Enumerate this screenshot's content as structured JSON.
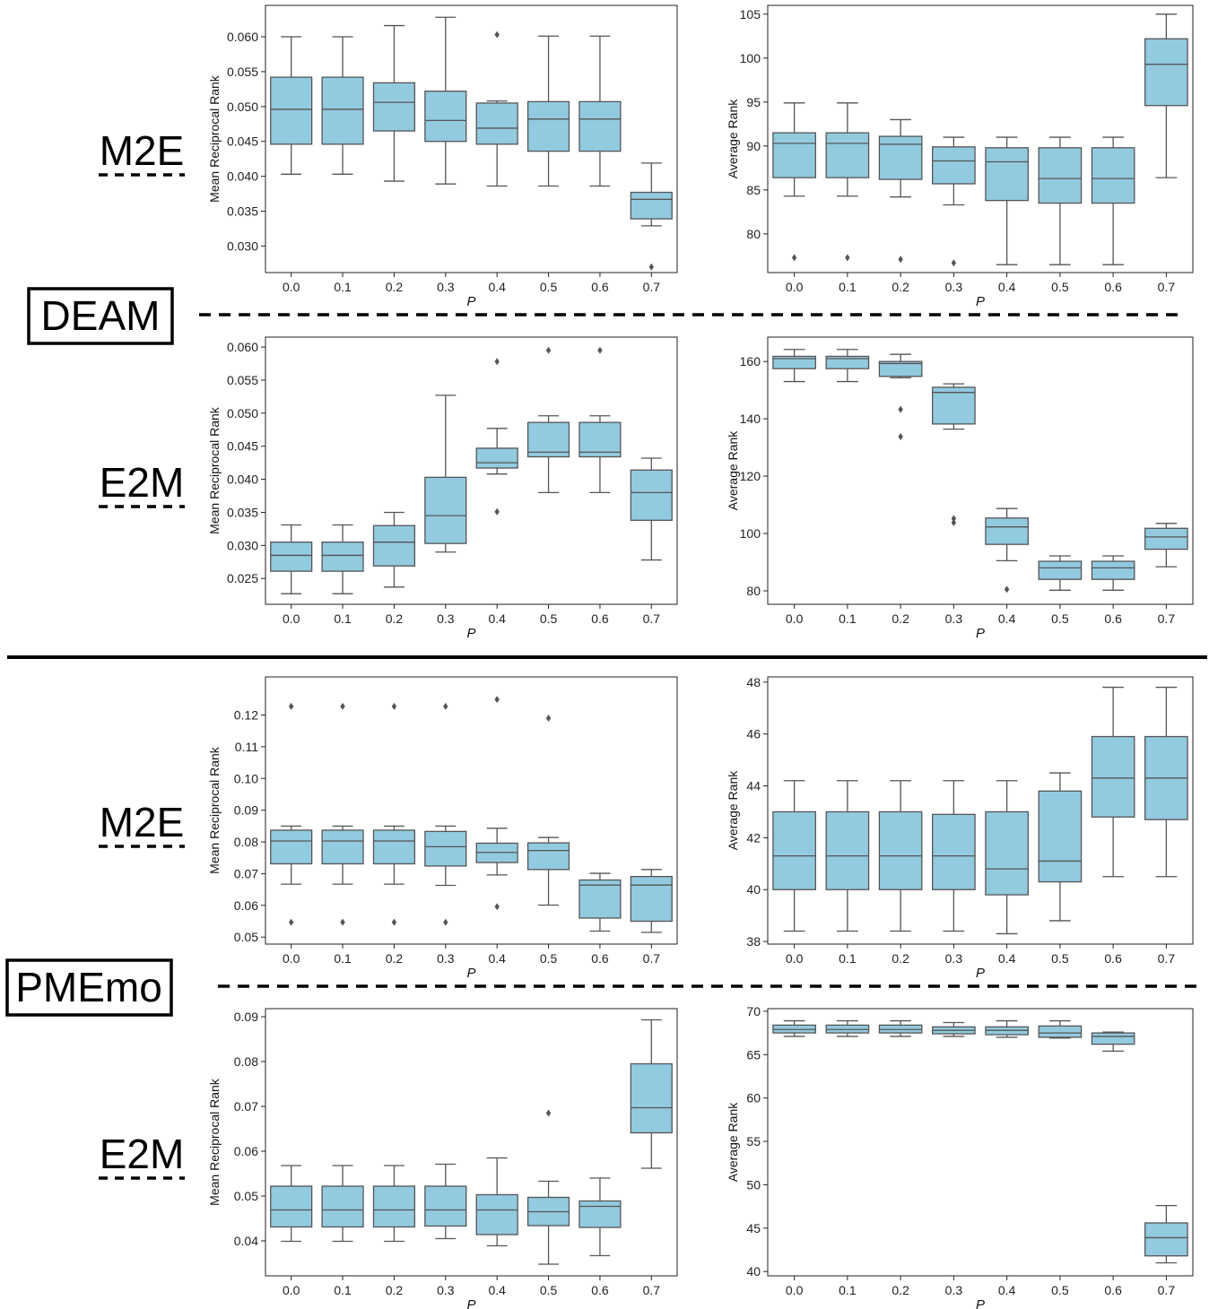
{
  "sections": [
    {
      "dataset": "DEAM",
      "rows": [
        "M2E",
        "E2M"
      ]
    },
    {
      "dataset": "PMEmo",
      "rows": [
        "M2E",
        "E2M"
      ]
    }
  ],
  "colors": {
    "box_fill": "#92cae0",
    "box_edge": "#555555",
    "outlier": "#555555"
  },
  "chart_data": [
    {
      "type": "box",
      "dataset": "DEAM",
      "direction": "M2E",
      "xlabel": "P",
      "ylabel": "Mean Reciprocal Rank",
      "categories": [
        "0.0",
        "0.1",
        "0.2",
        "0.3",
        "0.4",
        "0.5",
        "0.6",
        "0.7"
      ],
      "ylim": [
        0.0262,
        0.0645
      ],
      "yticks": [
        "0.030",
        "0.035",
        "0.040",
        "0.045",
        "0.050",
        "0.055",
        "0.060"
      ],
      "boxes": [
        {
          "whislo": 0.0403,
          "q1": 0.0446,
          "med": 0.0496,
          "q3": 0.0542,
          "whishi": 0.06,
          "fliers": []
        },
        {
          "whislo": 0.0403,
          "q1": 0.0446,
          "med": 0.0496,
          "q3": 0.0542,
          "whishi": 0.06,
          "fliers": []
        },
        {
          "whislo": 0.0393,
          "q1": 0.0465,
          "med": 0.0506,
          "q3": 0.0534,
          "whishi": 0.0616,
          "fliers": []
        },
        {
          "whislo": 0.0389,
          "q1": 0.045,
          "med": 0.048,
          "q3": 0.0522,
          "whishi": 0.0628,
          "fliers": []
        },
        {
          "whislo": 0.0386,
          "q1": 0.0446,
          "med": 0.0469,
          "q3": 0.0505,
          "whishi": 0.0508,
          "fliers": [
            0.0603
          ]
        },
        {
          "whislo": 0.0386,
          "q1": 0.0436,
          "med": 0.0482,
          "q3": 0.0507,
          "whishi": 0.0601,
          "fliers": []
        },
        {
          "whislo": 0.0386,
          "q1": 0.0436,
          "med": 0.0482,
          "q3": 0.0507,
          "whishi": 0.0601,
          "fliers": []
        },
        {
          "whislo": 0.0329,
          "q1": 0.0339,
          "med": 0.0367,
          "q3": 0.0377,
          "whishi": 0.0419,
          "fliers": [
            0.027
          ]
        }
      ]
    },
    {
      "type": "box",
      "dataset": "DEAM",
      "direction": "M2E",
      "xlabel": "P",
      "ylabel": "Average Rank",
      "categories": [
        "0.0",
        "0.1",
        "0.2",
        "0.3",
        "0.4",
        "0.5",
        "0.6",
        "0.7"
      ],
      "ylim": [
        75.6,
        106.0
      ],
      "yticks": [
        "80",
        "85",
        "90",
        "95",
        "100",
        "105"
      ],
      "boxes": [
        {
          "whislo": 84.3,
          "q1": 86.4,
          "med": 90.3,
          "q3": 91.5,
          "whishi": 94.9,
          "fliers": [
            77.3
          ]
        },
        {
          "whislo": 84.3,
          "q1": 86.4,
          "med": 90.3,
          "q3": 91.5,
          "whishi": 94.9,
          "fliers": [
            77.3
          ]
        },
        {
          "whislo": 84.2,
          "q1": 86.2,
          "med": 90.2,
          "q3": 91.1,
          "whishi": 93.0,
          "fliers": [
            77.1
          ]
        },
        {
          "whislo": 83.3,
          "q1": 85.7,
          "med": 88.3,
          "q3": 89.9,
          "whishi": 91.0,
          "fliers": [
            76.7
          ]
        },
        {
          "whislo": 76.5,
          "q1": 83.8,
          "med": 88.2,
          "q3": 89.8,
          "whishi": 91.0,
          "fliers": []
        },
        {
          "whislo": 76.5,
          "q1": 83.5,
          "med": 86.3,
          "q3": 89.8,
          "whishi": 91.0,
          "fliers": []
        },
        {
          "whislo": 76.5,
          "q1": 83.5,
          "med": 86.3,
          "q3": 89.8,
          "whishi": 91.0,
          "fliers": []
        },
        {
          "whislo": 86.4,
          "q1": 94.6,
          "med": 99.3,
          "q3": 102.2,
          "whishi": 105.0,
          "fliers": []
        }
      ]
    },
    {
      "type": "box",
      "dataset": "DEAM",
      "direction": "E2M",
      "xlabel": "P",
      "ylabel": "Mean Reciprocal Rank",
      "categories": [
        "0.0",
        "0.1",
        "0.2",
        "0.3",
        "0.4",
        "0.5",
        "0.6",
        "0.7"
      ],
      "ylim": [
        0.0211,
        0.0615
      ],
      "yticks": [
        "0.025",
        "0.030",
        "0.035",
        "0.040",
        "0.045",
        "0.050",
        "0.055",
        "0.060"
      ],
      "boxes": [
        {
          "whislo": 0.0227,
          "q1": 0.0261,
          "med": 0.0285,
          "q3": 0.0305,
          "whishi": 0.0331,
          "fliers": []
        },
        {
          "whislo": 0.0227,
          "q1": 0.0261,
          "med": 0.0285,
          "q3": 0.0305,
          "whishi": 0.0331,
          "fliers": []
        },
        {
          "whislo": 0.0237,
          "q1": 0.0269,
          "med": 0.0305,
          "q3": 0.033,
          "whishi": 0.035,
          "fliers": []
        },
        {
          "whislo": 0.029,
          "q1": 0.0303,
          "med": 0.0345,
          "q3": 0.0403,
          "whishi": 0.0527,
          "fliers": []
        },
        {
          "whislo": 0.0408,
          "q1": 0.0417,
          "med": 0.0425,
          "q3": 0.0447,
          "whishi": 0.0477,
          "fliers": [
            0.0578,
            0.0351
          ]
        },
        {
          "whislo": 0.038,
          "q1": 0.0434,
          "med": 0.0441,
          "q3": 0.0486,
          "whishi": 0.0496,
          "fliers": [
            0.0595
          ]
        },
        {
          "whislo": 0.038,
          "q1": 0.0434,
          "med": 0.0441,
          "q3": 0.0486,
          "whishi": 0.0496,
          "fliers": [
            0.0595
          ]
        },
        {
          "whislo": 0.0278,
          "q1": 0.0338,
          "med": 0.038,
          "q3": 0.0414,
          "whishi": 0.0432,
          "fliers": []
        }
      ]
    },
    {
      "type": "box",
      "dataset": "DEAM",
      "direction": "E2M",
      "xlabel": "P",
      "ylabel": "Average Rank",
      "categories": [
        "0.0",
        "0.1",
        "0.2",
        "0.3",
        "0.4",
        "0.5",
        "0.6",
        "0.7"
      ],
      "ylim": [
        75.3,
        168.5
      ],
      "yticks": [
        "80",
        "100",
        "120",
        "140",
        "160"
      ],
      "boxes": [
        {
          "whislo": 153.0,
          "q1": 157.5,
          "med": 161.0,
          "q3": 161.8,
          "whishi": 164.2,
          "fliers": []
        },
        {
          "whislo": 153.0,
          "q1": 157.5,
          "med": 161.0,
          "q3": 161.8,
          "whishi": 164.2,
          "fliers": []
        },
        {
          "whislo": 154.3,
          "q1": 154.8,
          "med": 159.3,
          "q3": 160.0,
          "whishi": 162.5,
          "fliers": [
            143.3,
            133.8
          ]
        },
        {
          "whislo": 136.4,
          "q1": 138.2,
          "med": 149.2,
          "q3": 151.0,
          "whishi": 152.2,
          "fliers": [
            105.2,
            103.8
          ]
        },
        {
          "whislo": 90.5,
          "q1": 96.2,
          "med": 102.3,
          "q3": 105.4,
          "whishi": 108.7,
          "fliers": [
            80.5
          ]
        },
        {
          "whislo": 80.2,
          "q1": 84.0,
          "med": 88.0,
          "q3": 90.3,
          "whishi": 92.2,
          "fliers": []
        },
        {
          "whislo": 80.2,
          "q1": 84.0,
          "med": 88.0,
          "q3": 90.3,
          "whishi": 92.2,
          "fliers": []
        },
        {
          "whislo": 88.4,
          "q1": 94.5,
          "med": 98.8,
          "q3": 101.8,
          "whishi": 103.5,
          "fliers": []
        }
      ]
    },
    {
      "type": "box",
      "dataset": "PMEmo",
      "direction": "M2E",
      "xlabel": "P",
      "ylabel": "Mean Reciprocal Rank",
      "categories": [
        "0.0",
        "0.1",
        "0.2",
        "0.3",
        "0.4",
        "0.5",
        "0.6",
        "0.7"
      ],
      "ylim": [
        0.0478,
        0.132
      ],
      "yticks": [
        "0.05",
        "0.06",
        "0.07",
        "0.08",
        "0.09",
        "0.10",
        "0.11",
        "0.12"
      ],
      "boxes": [
        {
          "whislo": 0.0667,
          "q1": 0.0731,
          "med": 0.0803,
          "q3": 0.0837,
          "whishi": 0.085,
          "fliers": [
            0.1227,
            0.0547
          ]
        },
        {
          "whislo": 0.0667,
          "q1": 0.0731,
          "med": 0.0803,
          "q3": 0.0837,
          "whishi": 0.085,
          "fliers": [
            0.1227,
            0.0547
          ]
        },
        {
          "whislo": 0.0667,
          "q1": 0.0731,
          "med": 0.0803,
          "q3": 0.0837,
          "whishi": 0.085,
          "fliers": [
            0.1227,
            0.0547
          ]
        },
        {
          "whislo": 0.0663,
          "q1": 0.0724,
          "med": 0.0785,
          "q3": 0.0833,
          "whishi": 0.085,
          "fliers": [
            0.1227,
            0.0547
          ]
        },
        {
          "whislo": 0.0696,
          "q1": 0.0735,
          "med": 0.0767,
          "q3": 0.0796,
          "whishi": 0.0843,
          "fliers": [
            0.1249,
            0.0596
          ]
        },
        {
          "whislo": 0.0601,
          "q1": 0.0713,
          "med": 0.0773,
          "q3": 0.0797,
          "whishi": 0.0814,
          "fliers": [
            0.119
          ]
        },
        {
          "whislo": 0.0519,
          "q1": 0.056,
          "med": 0.0664,
          "q3": 0.068,
          "whishi": 0.0701,
          "fliers": []
        },
        {
          "whislo": 0.0515,
          "q1": 0.055,
          "med": 0.0664,
          "q3": 0.0691,
          "whishi": 0.0713,
          "fliers": []
        }
      ]
    },
    {
      "type": "box",
      "dataset": "PMEmo",
      "direction": "M2E",
      "xlabel": "P",
      "ylabel": "Average Rank",
      "categories": [
        "0.0",
        "0.1",
        "0.2",
        "0.3",
        "0.4",
        "0.5",
        "0.6",
        "0.7"
      ],
      "ylim": [
        37.9,
        48.2
      ],
      "yticks": [
        "38",
        "40",
        "42",
        "44",
        "46",
        "48"
      ],
      "boxes": [
        {
          "whislo": 38.4,
          "q1": 40.0,
          "med": 41.3,
          "q3": 43.0,
          "whishi": 44.2,
          "fliers": []
        },
        {
          "whislo": 38.4,
          "q1": 40.0,
          "med": 41.3,
          "q3": 43.0,
          "whishi": 44.2,
          "fliers": []
        },
        {
          "whislo": 38.4,
          "q1": 40.0,
          "med": 41.3,
          "q3": 43.0,
          "whishi": 44.2,
          "fliers": []
        },
        {
          "whislo": 38.4,
          "q1": 40.0,
          "med": 41.3,
          "q3": 42.9,
          "whishi": 44.2,
          "fliers": []
        },
        {
          "whislo": 38.3,
          "q1": 39.8,
          "med": 40.8,
          "q3": 43.0,
          "whishi": 44.2,
          "fliers": []
        },
        {
          "whislo": 38.8,
          "q1": 40.3,
          "med": 41.1,
          "q3": 43.8,
          "whishi": 44.5,
          "fliers": []
        },
        {
          "whislo": 40.5,
          "q1": 42.8,
          "med": 44.3,
          "q3": 45.9,
          "whishi": 47.8,
          "fliers": []
        },
        {
          "whislo": 40.5,
          "q1": 42.7,
          "med": 44.3,
          "q3": 45.9,
          "whishi": 47.8,
          "fliers": []
        }
      ]
    },
    {
      "type": "box",
      "dataset": "PMEmo",
      "direction": "E2M",
      "xlabel": "P",
      "ylabel": "Mean Reciprocal Rank",
      "categories": [
        "0.0",
        "0.1",
        "0.2",
        "0.3",
        "0.4",
        "0.5",
        "0.6",
        "0.7"
      ],
      "ylim": [
        0.0322,
        0.0918
      ],
      "yticks": [
        "0.04",
        "0.05",
        "0.06",
        "0.07",
        "0.08",
        "0.09"
      ],
      "boxes": [
        {
          "whislo": 0.0399,
          "q1": 0.0431,
          "med": 0.0469,
          "q3": 0.0522,
          "whishi": 0.0568,
          "fliers": []
        },
        {
          "whislo": 0.0399,
          "q1": 0.0431,
          "med": 0.0469,
          "q3": 0.0522,
          "whishi": 0.0568,
          "fliers": []
        },
        {
          "whislo": 0.0399,
          "q1": 0.0431,
          "med": 0.0469,
          "q3": 0.0522,
          "whishi": 0.0568,
          "fliers": []
        },
        {
          "whislo": 0.0405,
          "q1": 0.0433,
          "med": 0.0469,
          "q3": 0.0522,
          "whishi": 0.0571,
          "fliers": []
        },
        {
          "whislo": 0.0389,
          "q1": 0.0414,
          "med": 0.0469,
          "q3": 0.0503,
          "whishi": 0.0585,
          "fliers": []
        },
        {
          "whislo": 0.0348,
          "q1": 0.0434,
          "med": 0.0465,
          "q3": 0.0497,
          "whishi": 0.0533,
          "fliers": [
            0.0685
          ]
        },
        {
          "whislo": 0.0367,
          "q1": 0.043,
          "med": 0.0477,
          "q3": 0.0489,
          "whishi": 0.054,
          "fliers": []
        },
        {
          "whislo": 0.0562,
          "q1": 0.0641,
          "med": 0.0697,
          "q3": 0.0795,
          "whishi": 0.0893,
          "fliers": []
        }
      ]
    },
    {
      "type": "box",
      "dataset": "PMEmo",
      "direction": "E2M",
      "xlabel": "P",
      "ylabel": "Average Rank",
      "categories": [
        "0.0",
        "0.1",
        "0.2",
        "0.3",
        "0.4",
        "0.5",
        "0.6",
        "0.7"
      ],
      "ylim": [
        39.5,
        70.3
      ],
      "yticks": [
        "40",
        "45",
        "50",
        "55",
        "60",
        "65",
        "70"
      ],
      "boxes": [
        {
          "whislo": 67.1,
          "q1": 67.5,
          "med": 67.9,
          "q3": 68.4,
          "whishi": 68.9,
          "fliers": []
        },
        {
          "whislo": 67.1,
          "q1": 67.5,
          "med": 67.9,
          "q3": 68.4,
          "whishi": 68.9,
          "fliers": []
        },
        {
          "whislo": 67.1,
          "q1": 67.5,
          "med": 67.9,
          "q3": 68.4,
          "whishi": 68.9,
          "fliers": []
        },
        {
          "whislo": 67.1,
          "q1": 67.4,
          "med": 67.8,
          "q3": 68.2,
          "whishi": 68.7,
          "fliers": []
        },
        {
          "whislo": 67.0,
          "q1": 67.3,
          "med": 67.8,
          "q3": 68.2,
          "whishi": 68.9,
          "fliers": []
        },
        {
          "whislo": 66.9,
          "q1": 67.0,
          "med": 67.5,
          "q3": 68.3,
          "whishi": 68.9,
          "fliers": []
        },
        {
          "whislo": 65.4,
          "q1": 66.2,
          "med": 67.1,
          "q3": 67.5,
          "whishi": 67.6,
          "fliers": []
        },
        {
          "whislo": 41.0,
          "q1": 41.8,
          "med": 43.9,
          "q3": 45.6,
          "whishi": 47.6,
          "fliers": []
        }
      ]
    }
  ]
}
